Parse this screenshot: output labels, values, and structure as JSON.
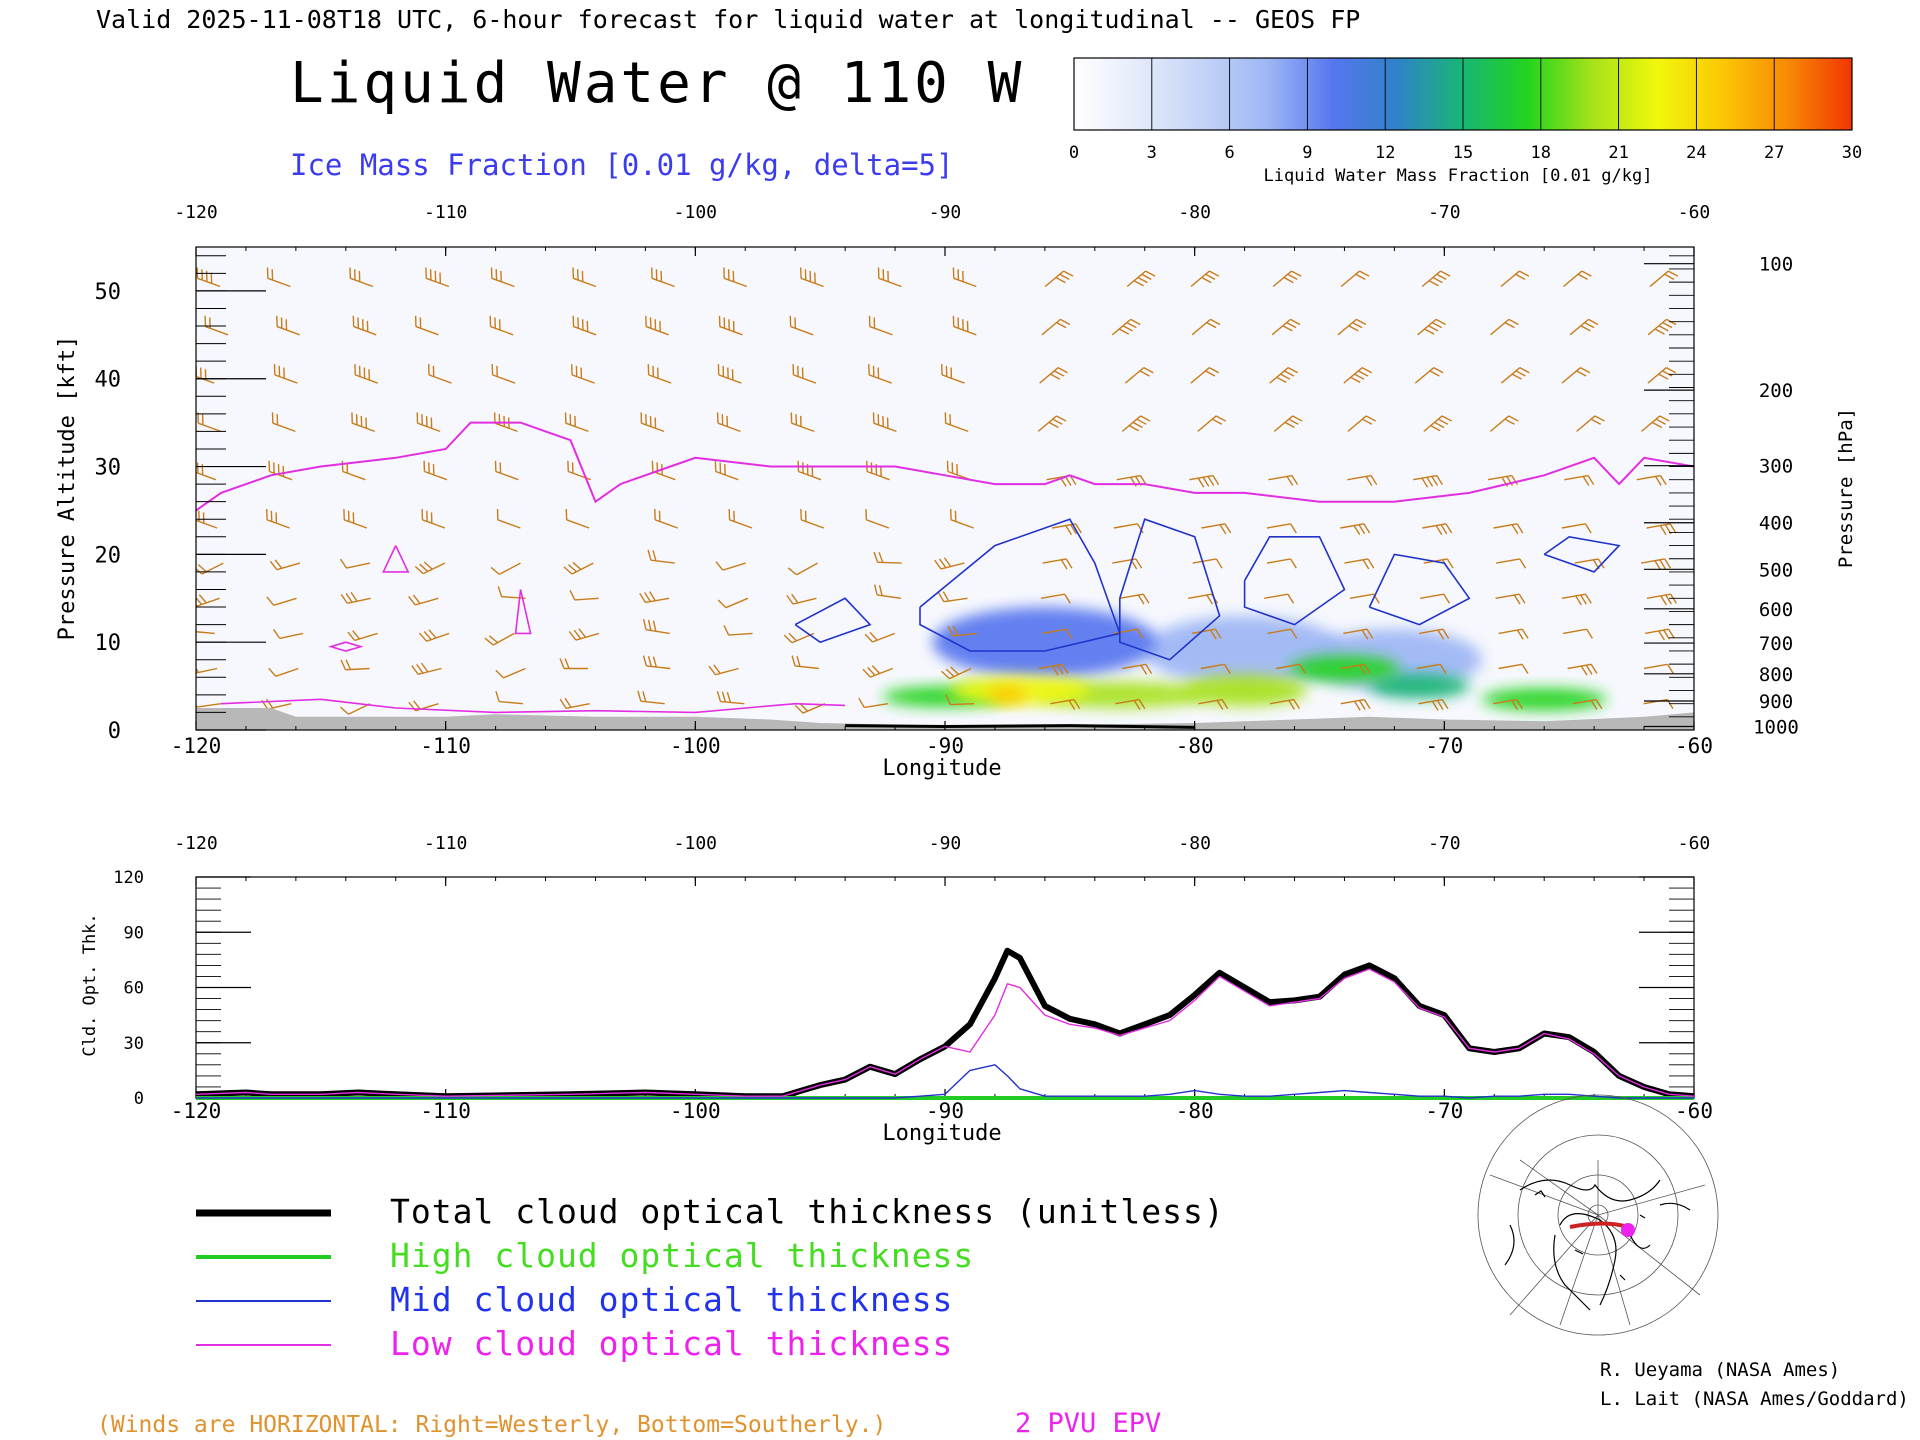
{
  "header": {
    "valid_line": "Valid 2025-11-08T18 UTC, 6-hour forecast for liquid water at longitudinal -- GEOS FP",
    "title": "Liquid Water @ 110 W",
    "subtitle": "Ice Mass Fraction [0.01 g/kg, delta=5]"
  },
  "colorbar": {
    "label": "Liquid Water Mass Fraction [0.01 g/kg]",
    "ticks": [
      "0",
      "3",
      "6",
      "9",
      "12",
      "15",
      "18",
      "21",
      "24",
      "27",
      "30"
    ],
    "colors": [
      "#ffffff",
      "#e4ebfa",
      "#c3d3f7",
      "#9db6f5",
      "#5676ef",
      "#2f83c8",
      "#19b673",
      "#22d41e",
      "#a7e21a",
      "#f1f70c",
      "#fbc804",
      "#f88a04",
      "#f13504"
    ]
  },
  "chart_data": [
    {
      "type": "heatmap",
      "title": "Liquid Water @ 110 W",
      "xlabel": "Longitude",
      "ylabel": "Pressure Altitude [kft]",
      "ylabel_right": "Pressure [hPa]",
      "xlim": [
        -120,
        -60
      ],
      "ylim": [
        0,
        55
      ],
      "x_ticks": [
        "-120",
        "-110",
        "-100",
        "-90",
        "-80",
        "-70",
        "-60"
      ],
      "x_top_ticks": [
        "-120",
        "-110",
        "-100",
        "-90",
        "-80",
        "-70",
        "-60"
      ],
      "y_ticks": [
        "0",
        "10",
        "20",
        "30",
        "40",
        "50"
      ],
      "y_tick_values": [
        0,
        10,
        20,
        30,
        40,
        50
      ],
      "pressure_ticks": [
        {
          "label": "100",
          "kft": 53.1
        },
        {
          "label": "200",
          "kft": 38.7
        },
        {
          "label": "300",
          "kft": 30.1
        },
        {
          "label": "400",
          "kft": 23.6
        },
        {
          "label": "500",
          "kft": 18.3
        },
        {
          "label": "600",
          "kft": 13.8
        },
        {
          "label": "700",
          "kft": 9.9
        },
        {
          "label": "800",
          "kft": 6.4
        },
        {
          "label": "900",
          "kft": 3.3
        },
        {
          "label": "1000",
          "kft": 0.4
        }
      ],
      "liquid_water_blobs": [
        {
          "lon": -87,
          "kft": 4.5,
          "rlon": 2.8,
          "rkft": 1.6,
          "value": 22
        },
        {
          "lon": -83,
          "kft": 4.0,
          "rlon": 3.5,
          "rkft": 1.5,
          "value": 19
        },
        {
          "lon": -78,
          "kft": 4.5,
          "rlon": 2.5,
          "rkft": 1.8,
          "value": 20
        },
        {
          "lon": -74,
          "kft": 7.0,
          "rlon": 2.2,
          "rkft": 1.5,
          "value": 17
        },
        {
          "lon": -71,
          "kft": 5.0,
          "rlon": 2.0,
          "rkft": 1.4,
          "value": 16
        },
        {
          "lon": -66,
          "kft": 3.5,
          "rlon": 2.5,
          "rkft": 1.3,
          "value": 18
        },
        {
          "lon": -90,
          "kft": 3.8,
          "rlon": 2.5,
          "rkft": 1.2,
          "value": 17
        },
        {
          "lon": -86,
          "kft": 10.0,
          "rlon": 4.5,
          "rkft": 4.0,
          "value": 9
        },
        {
          "lon": -78,
          "kft": 9.0,
          "rlon": 4.0,
          "rkft": 4.0,
          "value": 8
        },
        {
          "lon": -72,
          "kft": 8.0,
          "rlon": 3.5,
          "rkft": 3.5,
          "value": 7
        },
        {
          "lon": -87.5,
          "kft": 4.0,
          "rlon": 0.8,
          "rkft": 1.0,
          "value": 25
        }
      ],
      "ice_contours": [
        [
          [
            -91,
            14
          ],
          [
            -88,
            21
          ],
          [
            -85,
            24
          ],
          [
            -84,
            19
          ],
          [
            -83,
            11
          ],
          [
            -86,
            9
          ],
          [
            -89,
            9
          ],
          [
            -91,
            12
          ],
          [
            -91,
            14
          ]
        ],
        [
          [
            -83,
            15
          ],
          [
            -82,
            24
          ],
          [
            -80,
            22
          ],
          [
            -79,
            13
          ],
          [
            -81,
            8
          ],
          [
            -83,
            10
          ],
          [
            -83,
            15
          ]
        ],
        [
          [
            -78,
            17
          ],
          [
            -77,
            22
          ],
          [
            -75,
            22
          ],
          [
            -74,
            16
          ],
          [
            -76,
            12
          ],
          [
            -78,
            14
          ],
          [
            -78,
            17
          ]
        ],
        [
          [
            -73,
            14
          ],
          [
            -72,
            20
          ],
          [
            -70,
            19
          ],
          [
            -69,
            15
          ],
          [
            -71,
            12
          ],
          [
            -73,
            14
          ]
        ],
        [
          [
            -66,
            20
          ],
          [
            -65,
            22
          ],
          [
            -63,
            21
          ],
          [
            -64,
            18
          ],
          [
            -66,
            20
          ]
        ],
        [
          [
            -96,
            12
          ],
          [
            -94,
            15
          ],
          [
            -93,
            12
          ],
          [
            -95,
            10
          ],
          [
            -96,
            12
          ]
        ]
      ],
      "epv_2pvu_line": [
        [
          -120,
          25
        ],
        [
          -119,
          27
        ],
        [
          -117,
          29
        ],
        [
          -115,
          30
        ],
        [
          -112,
          31
        ],
        [
          -110,
          32
        ],
        [
          -109,
          35
        ],
        [
          -107,
          35
        ],
        [
          -106,
          34
        ],
        [
          -105,
          33
        ],
        [
          -104,
          26
        ],
        [
          -103,
          28
        ],
        [
          -101,
          30
        ],
        [
          -100,
          31
        ],
        [
          -97,
          30
        ],
        [
          -95,
          30
        ],
        [
          -92,
          30
        ],
        [
          -90,
          29
        ],
        [
          -88,
          28
        ],
        [
          -86,
          28
        ],
        [
          -85,
          29
        ],
        [
          -84,
          28
        ],
        [
          -82,
          28
        ],
        [
          -80,
          27
        ],
        [
          -78,
          27
        ],
        [
          -75,
          26
        ],
        [
          -72,
          26
        ],
        [
          -69,
          27
        ],
        [
          -66,
          29
        ],
        [
          -64,
          31
        ],
        [
          -63,
          28
        ],
        [
          -62,
          31
        ],
        [
          -60,
          30
        ]
      ],
      "epv_small_contours": [
        [
          [
            -107,
            16
          ],
          [
            -106.6,
            11
          ],
          [
            -107.2,
            11
          ],
          [
            -107,
            16
          ]
        ],
        [
          [
            -112,
            21
          ],
          [
            -111.5,
            18
          ],
          [
            -112.5,
            18
          ],
          [
            -112,
            21
          ]
        ],
        [
          [
            -114,
            10
          ],
          [
            -113.4,
            9.5
          ],
          [
            -114,
            9
          ],
          [
            -114.6,
            9.5
          ],
          [
            -114,
            10
          ]
        ],
        [
          [
            -119,
            3
          ],
          [
            -115,
            3.5
          ],
          [
            -112,
            2.5
          ],
          [
            -108,
            2
          ],
          [
            -104,
            2.2
          ],
          [
            -100,
            2
          ],
          [
            -96,
            3
          ],
          [
            -94,
            2.8
          ]
        ]
      ],
      "terrain_kft": [
        [
          -120,
          2.5
        ],
        [
          -117,
          2.5
        ],
        [
          -116,
          1.5
        ],
        [
          -110,
          1.5
        ],
        [
          -108,
          1.8
        ],
        [
          -104,
          1.5
        ],
        [
          -100,
          1.5
        ],
        [
          -97,
          1.2
        ],
        [
          -95,
          0.8
        ],
        [
          -90,
          0.5
        ],
        [
          -85,
          0.6
        ],
        [
          -80,
          0.8
        ],
        [
          -76,
          1.2
        ],
        [
          -73,
          1.5
        ],
        [
          -70,
          1.2
        ],
        [
          -66,
          1
        ],
        [
          -62,
          1.5
        ],
        [
          -60,
          2
        ]
      ],
      "wind_note": "(Winds are HORIZONTAL: Right=Westerly, Bottom=Southerly.)",
      "epv_label": "2 PVU EPV"
    },
    {
      "type": "line",
      "xlabel": "Longitude",
      "ylabel": "Cld. Opt. Thk.",
      "xlim": [
        -120,
        -60
      ],
      "ylim": [
        0,
        120
      ],
      "x_ticks": [
        "-120",
        "-110",
        "-100",
        "-90",
        "-80",
        "-70",
        "-60"
      ],
      "x_top_ticks": [
        "-120",
        "-110",
        "-100",
        "-90",
        "-80",
        "-70",
        "-60"
      ],
      "y_ticks": [
        "0",
        "30",
        "60",
        "90",
        "120"
      ],
      "y_tick_values": [
        0,
        30,
        60,
        90,
        120
      ],
      "x": [
        -120,
        -118,
        -117,
        -115,
        -113.5,
        -112,
        -110,
        -105,
        -102,
        -100,
        -98,
        -96.5,
        -95.5,
        -95,
        -94,
        -93,
        -92,
        -91,
        -90,
        -89,
        -88,
        -87.5,
        -87,
        -86,
        -85,
        -84,
        -83,
        -82,
        -81,
        -80,
        -79,
        -78,
        -77,
        -76,
        -75,
        -74,
        -73,
        -72,
        -71,
        -70,
        -69,
        -68,
        -67,
        -66,
        -65,
        -64,
        -63,
        -62,
        -61,
        -60
      ],
      "series": [
        {
          "name": "Total cloud optical thickness (unitless)",
          "color": "#000000",
          "width": 6,
          "values": [
            2,
            3,
            2,
            2,
            3,
            2,
            1,
            2,
            3,
            2,
            1,
            1,
            5,
            7,
            10,
            17,
            13,
            21,
            28,
            40,
            65,
            80,
            76,
            50,
            43,
            40,
            35,
            40,
            45,
            56,
            68,
            60,
            52,
            53,
            55,
            67,
            72,
            65,
            50,
            45,
            27,
            25,
            27,
            35,
            33,
            25,
            12,
            6,
            2,
            1
          ]
        },
        {
          "name": "High cloud optical thickness",
          "color": "#22cc22",
          "width": 4,
          "values": [
            0,
            0,
            0,
            0,
            0,
            0,
            0,
            0,
            0,
            0,
            0,
            0,
            0,
            0,
            0,
            0,
            0,
            0,
            0,
            0,
            0,
            0,
            0,
            0,
            0,
            0,
            0,
            0,
            0,
            0,
            0,
            0,
            0,
            0,
            0,
            0,
            0,
            0,
            0,
            0,
            0,
            0,
            0,
            0,
            0,
            0,
            0,
            0,
            0,
            0
          ]
        },
        {
          "name": "Mid cloud optical thickness",
          "color": "#2233cc",
          "width": 1.4,
          "values": [
            0,
            0,
            0,
            0,
            0,
            0,
            0,
            0,
            0,
            0,
            0,
            0,
            0,
            0,
            0,
            0,
            0,
            1,
            2,
            15,
            18,
            12,
            5,
            1,
            1,
            1,
            1,
            1,
            2,
            4,
            2,
            1,
            1,
            2,
            3,
            4,
            3,
            2,
            1,
            1,
            0,
            1,
            1,
            2,
            2,
            1,
            0,
            0,
            0,
            0
          ]
        },
        {
          "name": "Low cloud optical thickness",
          "color": "#e22ee2",
          "width": 1.4,
          "values": [
            2,
            3,
            2,
            2,
            3,
            2,
            1,
            2,
            3,
            2,
            1,
            1,
            5,
            7,
            10,
            17,
            13,
            21,
            28,
            25,
            45,
            62,
            60,
            45,
            40,
            38,
            34,
            38,
            42,
            53,
            66,
            58,
            50,
            52,
            54,
            65,
            70,
            63,
            49,
            44,
            27,
            25,
            27,
            35,
            32,
            24,
            12,
            6,
            2,
            1
          ]
        }
      ]
    }
  ],
  "legend": [
    {
      "label": "Total cloud optical thickness (unitless)",
      "color": "#000000",
      "text_color": "#000000",
      "width": 7
    },
    {
      "label": "High cloud optical thickness",
      "color": "#22cc22",
      "text_color": "#44dd22",
      "width": 4
    },
    {
      "label": "Mid cloud optical thickness",
      "color": "#2233cc",
      "text_color": "#2233ee",
      "width": 2
    },
    {
      "label": "Low cloud optical thickness",
      "color": "#e22ee2",
      "text_color": "#ee22ee",
      "width": 2
    }
  ],
  "credits": [
    "R. Ueyama (NASA Ames)",
    "L. Lait (NASA Ames/Goddard)"
  ],
  "colors": {
    "wind_barb": "#c87c1a",
    "epv": "#e22ee2",
    "ice": "#2233cc",
    "terrain": "#b8b8b8",
    "bg_tint": "#f6f8fd"
  }
}
